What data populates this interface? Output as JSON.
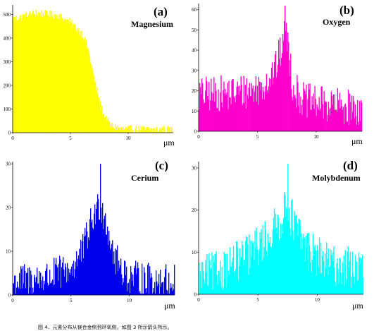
{
  "caption": "图 4．元素分布从镁合金侧到环氧侧，如图 3 所示箭头所示。",
  "chart_data": [
    {
      "type": "bar",
      "panel_label": "(a)",
      "element": "Magnesium",
      "color": "#ffff00",
      "xlabel": "μm",
      "xlim": [
        0,
        13.9
      ],
      "ylim": [
        0,
        540
      ],
      "xticks": [
        0,
        5,
        10
      ],
      "yticks": [
        0,
        100,
        200,
        300,
        400,
        500
      ],
      "profile": [
        [
          0,
          480
        ],
        [
          2,
          505
        ],
        [
          4,
          495
        ],
        [
          5,
          465
        ],
        [
          6,
          420
        ],
        [
          6.5,
          360
        ],
        [
          7,
          240
        ],
        [
          7.5,
          130
        ],
        [
          8,
          60
        ],
        [
          8.5,
          30
        ],
        [
          9.5,
          15
        ],
        [
          13.9,
          12
        ]
      ],
      "noise_amplitude": 18,
      "max_value": 520
    },
    {
      "type": "bar",
      "panel_label": "(b)",
      "element": "Oxygen",
      "color": "#ff00cc",
      "xlabel": "μm",
      "xlim": [
        0,
        13.9
      ],
      "ylim": [
        0,
        63
      ],
      "xticks": [
        0,
        5,
        10
      ],
      "yticks": [
        0,
        10,
        20,
        30,
        40,
        50,
        60
      ],
      "profile": [
        [
          0,
          18
        ],
        [
          3,
          19
        ],
        [
          5,
          21
        ],
        [
          6,
          26
        ],
        [
          6.6,
          32
        ],
        [
          7,
          40
        ],
        [
          7.3,
          47
        ],
        [
          7.6,
          45
        ],
        [
          8,
          22
        ],
        [
          9,
          15
        ],
        [
          11,
          13
        ],
        [
          13.9,
          11
        ]
      ],
      "noise_amplitude": 9,
      "max_value": 62
    },
    {
      "type": "bar",
      "panel_label": "(c)",
      "element": "Cerium",
      "color": "#0000ee",
      "xlabel": "μm",
      "xlim": [
        0,
        13.9
      ],
      "ylim": [
        0,
        30.5
      ],
      "xticks": [
        0,
        5,
        10
      ],
      "yticks": [
        0,
        10,
        20,
        30
      ],
      "profile": [
        [
          0,
          3
        ],
        [
          3,
          4
        ],
        [
          5,
          6
        ],
        [
          6,
          10
        ],
        [
          6.8,
          17
        ],
        [
          7.5,
          21
        ],
        [
          8,
          17
        ],
        [
          8.8,
          8
        ],
        [
          10,
          4
        ],
        [
          13.9,
          3
        ]
      ],
      "noise_amplitude": 4,
      "max_value": 30
    },
    {
      "type": "bar",
      "panel_label": "(d)",
      "element": "Molybdenum",
      "color": "#00ffff",
      "xlabel": "μm",
      "xlim": [
        0,
        13.9
      ],
      "ylim": [
        0,
        31.5
      ],
      "xticks": [
        0,
        5,
        10
      ],
      "yticks": [
        0,
        10,
        20,
        30
      ],
      "profile": [
        [
          0,
          4
        ],
        [
          2,
          6
        ],
        [
          4,
          9
        ],
        [
          6,
          14
        ],
        [
          7,
          18
        ],
        [
          7.5,
          21
        ],
        [
          8,
          17
        ],
        [
          9,
          11
        ],
        [
          11,
          7
        ],
        [
          13.9,
          6
        ]
      ],
      "noise_amplitude": 5,
      "max_value": 31
    }
  ]
}
